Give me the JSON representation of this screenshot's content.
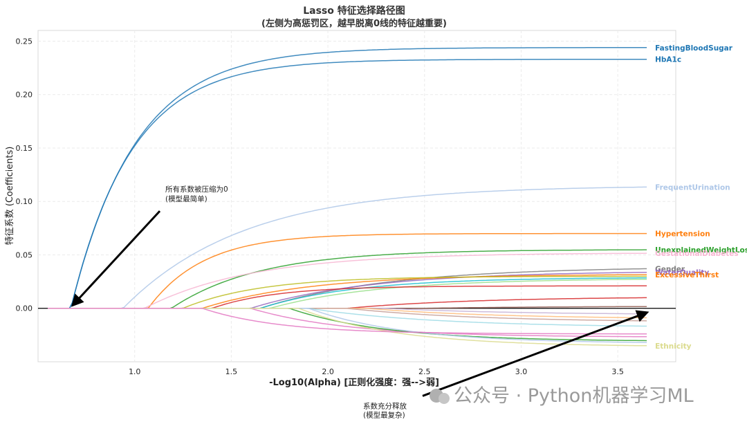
{
  "watermark": "公众号 · Python机器学习ML",
  "chart_data": {
    "type": "line",
    "title": "Lasso 特征选择路径图",
    "subtitle": "(左侧为高惩罚区，越早脱离0线的特征越重要)",
    "xlabel": "-Log10(Alpha)  [正则化强度：强-->弱]",
    "ylabel": "特征系数 (Coefficients)",
    "xlim": [
      0.5,
      3.8
    ],
    "ylim": [
      -0.05,
      0.26
    ],
    "xticks": [
      1.0,
      1.5,
      2.0,
      2.5,
      3.0,
      3.5
    ],
    "xtick_labels": [
      "1.0",
      "1.5",
      "2.0",
      "2.5",
      "3.0",
      "3.5"
    ],
    "yticks": [
      0.0,
      0.05,
      0.1,
      0.15,
      0.2,
      0.25
    ],
    "ytick_labels": [
      "0.00",
      "0.05",
      "0.10",
      "0.15",
      "0.20",
      "0.25"
    ],
    "grid": true,
    "zero_line": true,
    "x_end": 3.65,
    "series": [
      {
        "name": "FastingBloodSugar",
        "color": "#1f77b4",
        "start": 0.67,
        "final": 0.244,
        "rate": 3.0,
        "label": "FastingBloodSugar"
      },
      {
        "name": "HbA1c",
        "color": "#1f77b4",
        "start": 0.67,
        "final": 0.233,
        "rate": 3.2,
        "label": "HbA1c"
      },
      {
        "name": "FrequentUrination",
        "color": "#aec7e8",
        "start": 0.94,
        "final": 0.115,
        "rate": 1.6,
        "label": "FrequentUrination"
      },
      {
        "name": "Hypertension",
        "color": "#ff7f0e",
        "start": 1.07,
        "final": 0.07,
        "rate": 3.5,
        "label": "Hypertension"
      },
      {
        "name": "UnexplainedWeightLoss",
        "color": "#2ca02c",
        "start": 1.19,
        "final": 0.055,
        "rate": 2.2,
        "label": "UnexplainedWeightLoss"
      },
      {
        "name": "GestationalDiabetes",
        "color": "#f7b6d2",
        "start": 1.05,
        "final": 0.052,
        "rate": 1.8,
        "label": "GestationalDiabetes"
      },
      {
        "name": "Gender",
        "color": "#7f7f7f",
        "start": 1.65,
        "final": 0.039,
        "rate": 1.5,
        "label": "Gender"
      },
      {
        "name": "WaterQuality",
        "color": "#9467bd",
        "start": 1.6,
        "final": 0.035,
        "rate": 1.6,
        "label": "WaterQuality"
      },
      {
        "name": "ExcessiveThirst",
        "color": "#ff7f0e",
        "start": 1.35,
        "final": 0.032,
        "rate": 1.8,
        "label": "ExcessiveThirst"
      },
      {
        "name": "",
        "color": "#bcbd22",
        "start": 1.25,
        "final": 0.03,
        "rate": 2.5,
        "label": ""
      },
      {
        "name": "",
        "color": "#17becf",
        "start": 1.65,
        "final": 0.029,
        "rate": 2.0,
        "label": ""
      },
      {
        "name": "",
        "color": "#98df8a",
        "start": 1.7,
        "final": 0.028,
        "rate": 1.8,
        "label": ""
      },
      {
        "name": "",
        "color": "#d62728",
        "start": 1.4,
        "final": 0.021,
        "rate": 3.0,
        "label": ""
      },
      {
        "name": "",
        "color": "#d62728",
        "start": 2.1,
        "final": 0.011,
        "rate": 1.5,
        "label": ""
      },
      {
        "name": "",
        "color": "#8c564b",
        "start": 2.5,
        "final": 0.002,
        "rate": 1.5,
        "label": ""
      },
      {
        "name": "",
        "color": "#c5b0d5",
        "start": 2.3,
        "final": -0.006,
        "rate": 1.5,
        "label": ""
      },
      {
        "name": "",
        "color": "#ffbb78",
        "start": 2.2,
        "final": -0.01,
        "rate": 1.5,
        "label": ""
      },
      {
        "name": "",
        "color": "#c49c94",
        "start": 2.1,
        "final": -0.013,
        "rate": 1.5,
        "label": ""
      },
      {
        "name": "",
        "color": "#9edae5",
        "start": 1.9,
        "final": -0.018,
        "rate": 1.5,
        "label": ""
      },
      {
        "name": "",
        "color": "#e377c2",
        "start": 1.6,
        "final": -0.027,
        "rate": 2.0,
        "label": ""
      },
      {
        "name": "",
        "color": "#2ca02c",
        "start": 1.8,
        "final": -0.031,
        "rate": 2.0,
        "label": ""
      },
      {
        "name": "",
        "color": "#aec7e8",
        "start": 1.9,
        "final": -0.033,
        "rate": 2.0,
        "label": ""
      },
      {
        "name": "Ethnicity",
        "color": "#dbdb8d",
        "start": 1.85,
        "final": -0.036,
        "rate": 2.0,
        "label": "Ethnicity"
      },
      {
        "name": "",
        "color": "#e377c2",
        "start": 1.35,
        "final": -0.024,
        "rate": 2.5,
        "label": ""
      }
    ],
    "annotations": [
      {
        "text_line1": "所有系数被压缩为0",
        "text_line2": "(模型最简单)",
        "from_x": 1.13,
        "from_y": 0.091,
        "to_x": 0.68,
        "to_y": 0.003
      },
      {
        "text_line1": "系数充分释放",
        "text_line2": "(模型最复杂)",
        "from_x": 2.49,
        "from_y": -0.082,
        "to_x": 3.65,
        "to_y": -0.004
      }
    ]
  }
}
